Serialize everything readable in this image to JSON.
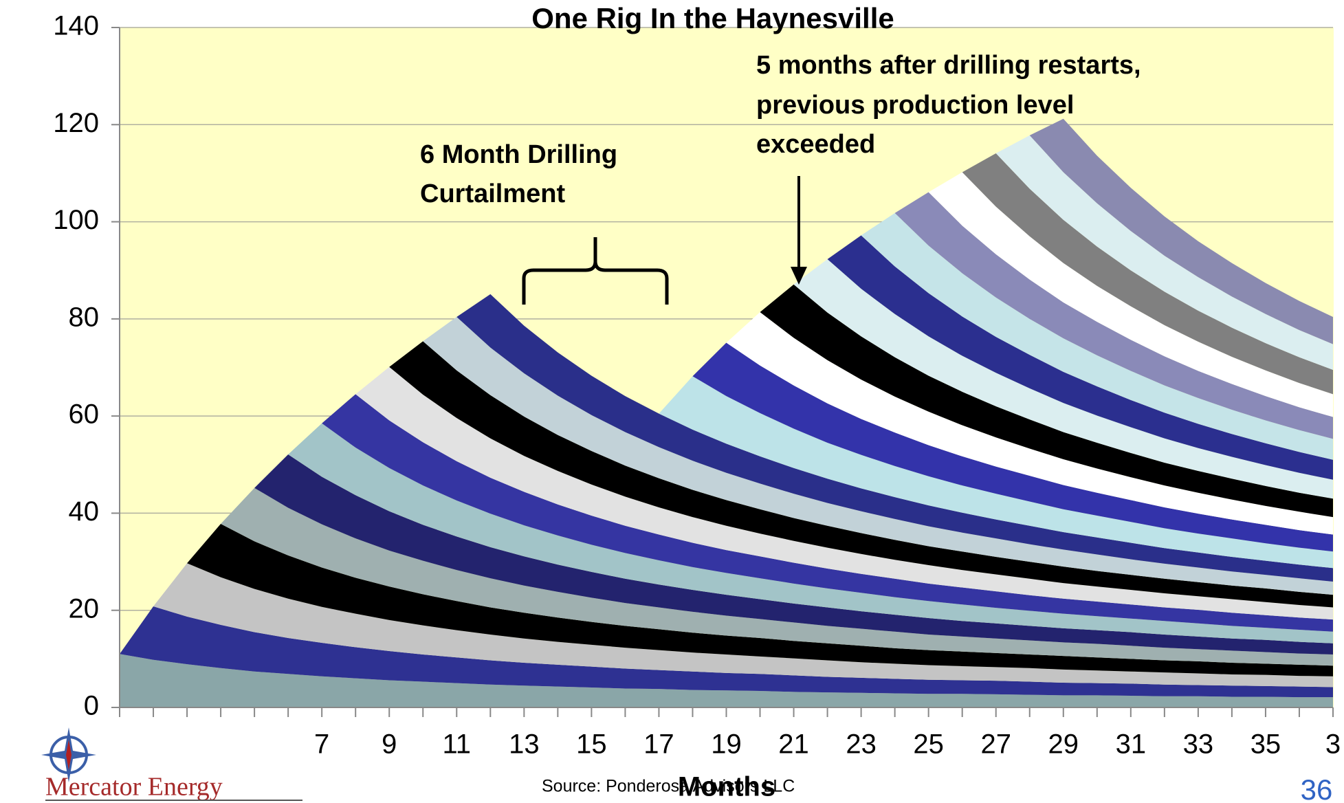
{
  "chart_data": {
    "type": "stacked_area",
    "title": "One Rig In the Haynesville",
    "x_label": "Months",
    "annotations": [
      [
        "6 Month Drilling",
        "Curtailment"
      ],
      [
        "5 months after drilling restarts,",
        "previous production level",
        "exceeded"
      ]
    ],
    "source": "Source: Ponderosa Advisors LLC",
    "brand": "Mercator Energy",
    "page": 36,
    "xlim": [
      1,
      37
    ],
    "ylim": [
      0,
      140
    ],
    "yticks": [
      0,
      20,
      40,
      60,
      80,
      100,
      120,
      140
    ],
    "xticks": [
      7,
      9,
      11,
      13,
      15,
      17,
      19,
      21,
      23,
      25,
      27,
      29,
      31,
      33,
      35,
      {
        "value": 37,
        "label": "3"
      }
    ],
    "grid": true,
    "background": "#ffffc6",
    "x": [
      1,
      2,
      3,
      4,
      5,
      6,
      7,
      8,
      9,
      10,
      11,
      12,
      13,
      14,
      15,
      16,
      17,
      18,
      19,
      20,
      21,
      22,
      23,
      24,
      25,
      26,
      27,
      28,
      29,
      30,
      31,
      32,
      33,
      34,
      35,
      36,
      37
    ],
    "series": [
      {
        "color": "#8aa6a8",
        "values": [
          11,
          9.8,
          8.9,
          8.1,
          7.4,
          6.9,
          6.4,
          6,
          5.6,
          5.3,
          5,
          4.7,
          4.5,
          4.3,
          4.1,
          3.9,
          3.8,
          3.6,
          3.5,
          3.4,
          3.2,
          3.1,
          3,
          2.9,
          2.8,
          2.8,
          2.7,
          2.6,
          2.5,
          2.5,
          2.4,
          2.3,
          2.3,
          2.2,
          2.2,
          2.1,
          2.1
        ]
      },
      {
        "color": "#2e3192",
        "values": [
          0,
          11,
          9.8,
          8.9,
          8.1,
          7.4,
          6.9,
          6.4,
          6,
          5.6,
          5.3,
          5,
          4.7,
          4.5,
          4.3,
          4.1,
          3.9,
          3.8,
          3.6,
          3.5,
          3.4,
          3.2,
          3.1,
          3,
          2.9,
          2.8,
          2.8,
          2.7,
          2.6,
          2.5,
          2.5,
          2.4,
          2.3,
          2.3,
          2.2,
          2.2,
          2.1
        ]
      },
      {
        "color": "#c4c4c4",
        "values": [
          0,
          0,
          11,
          9.8,
          8.9,
          8.1,
          7.4,
          6.9,
          6.4,
          6,
          5.6,
          5.3,
          5,
          4.7,
          4.5,
          4.3,
          4.1,
          3.9,
          3.8,
          3.6,
          3.5,
          3.4,
          3.2,
          3.1,
          3,
          2.9,
          2.8,
          2.8,
          2.7,
          2.6,
          2.5,
          2.5,
          2.4,
          2.3,
          2.3,
          2.2,
          2.2
        ]
      },
      {
        "color": "#000000",
        "values": [
          0,
          0,
          0,
          11,
          9.8,
          8.9,
          8.1,
          7.4,
          6.9,
          6.4,
          6,
          5.6,
          5.3,
          5,
          4.7,
          4.5,
          4.3,
          4.1,
          3.9,
          3.8,
          3.6,
          3.5,
          3.4,
          3.2,
          3.1,
          3,
          2.9,
          2.8,
          2.8,
          2.7,
          2.6,
          2.5,
          2.5,
          2.4,
          2.3,
          2.3,
          2.2
        ]
      },
      {
        "color": "#9fb0b0",
        "values": [
          0,
          0,
          0,
          0,
          11,
          9.8,
          8.9,
          8.1,
          7.4,
          6.9,
          6.4,
          6,
          5.6,
          5.3,
          5,
          4.7,
          4.5,
          4.3,
          4.1,
          3.9,
          3.8,
          3.6,
          3.5,
          3.4,
          3.2,
          3.1,
          3,
          2.9,
          2.8,
          2.8,
          2.7,
          2.6,
          2.5,
          2.5,
          2.4,
          2.3,
          2.3
        ]
      },
      {
        "color": "#23236e",
        "values": [
          0,
          0,
          0,
          0,
          0,
          11,
          9.8,
          8.9,
          8.1,
          7.4,
          6.9,
          6.4,
          6,
          5.6,
          5.3,
          5,
          4.7,
          4.5,
          4.3,
          4.1,
          3.9,
          3.8,
          3.6,
          3.5,
          3.4,
          3.2,
          3.1,
          3,
          2.9,
          2.8,
          2.8,
          2.7,
          2.6,
          2.5,
          2.5,
          2.4,
          2.3
        ]
      },
      {
        "color": "#a2c4c8",
        "values": [
          0,
          0,
          0,
          0,
          0,
          0,
          11,
          9.8,
          8.9,
          8.1,
          7.4,
          6.9,
          6.4,
          6,
          5.6,
          5.3,
          5,
          4.7,
          4.5,
          4.3,
          4.1,
          3.9,
          3.8,
          3.6,
          3.5,
          3.4,
          3.2,
          3.1,
          3,
          2.9,
          2.8,
          2.8,
          2.7,
          2.6,
          2.5,
          2.5,
          2.4
        ]
      },
      {
        "color": "#3535a2",
        "values": [
          0,
          0,
          0,
          0,
          0,
          0,
          0,
          11,
          9.8,
          8.9,
          8.1,
          7.4,
          6.9,
          6.4,
          6,
          5.6,
          5.3,
          5,
          4.7,
          4.5,
          4.3,
          4.1,
          3.9,
          3.8,
          3.6,
          3.5,
          3.4,
          3.2,
          3.1,
          3,
          2.9,
          2.8,
          2.8,
          2.7,
          2.6,
          2.5,
          2.5
        ]
      },
      {
        "color": "#e2e2e2",
        "values": [
          0,
          0,
          0,
          0,
          0,
          0,
          0,
          0,
          11,
          9.8,
          8.9,
          8.1,
          7.4,
          6.9,
          6.4,
          6,
          5.6,
          5.3,
          5,
          4.7,
          4.5,
          4.3,
          4.1,
          3.9,
          3.8,
          3.6,
          3.5,
          3.4,
          3.2,
          3.1,
          3,
          2.9,
          2.8,
          2.8,
          2.7,
          2.6,
          2.5
        ]
      },
      {
        "color": "#000000",
        "values": [
          0,
          0,
          0,
          0,
          0,
          0,
          0,
          0,
          0,
          11,
          9.8,
          8.9,
          8.1,
          7.4,
          6.9,
          6.4,
          6,
          5.6,
          5.3,
          5,
          4.7,
          4.5,
          4.3,
          4.1,
          3.9,
          3.8,
          3.6,
          3.5,
          3.4,
          3.2,
          3.1,
          3,
          2.9,
          2.8,
          2.8,
          2.7,
          2.6
        ]
      },
      {
        "color": "#c2d2d8",
        "values": [
          0,
          0,
          0,
          0,
          0,
          0,
          0,
          0,
          0,
          0,
          11,
          9.8,
          8.9,
          8.1,
          7.4,
          6.9,
          6.4,
          6,
          5.6,
          5.3,
          5,
          4.7,
          4.5,
          4.3,
          4.1,
          3.9,
          3.8,
          3.6,
          3.5,
          3.4,
          3.2,
          3.1,
          3,
          2.9,
          2.8,
          2.8,
          2.7
        ]
      },
      {
        "color": "#2a2f8a",
        "values": [
          0,
          0,
          0,
          0,
          0,
          0,
          0,
          0,
          0,
          0,
          0,
          11,
          9.8,
          8.9,
          8.1,
          7.4,
          6.9,
          6.4,
          6,
          5.6,
          5.3,
          5,
          4.7,
          4.5,
          4.3,
          4.1,
          3.9,
          3.8,
          3.6,
          3.5,
          3.4,
          3.2,
          3.1,
          3,
          2.9,
          2.8,
          2.8
        ]
      },
      {
        "color": "#bde3e8",
        "values": [
          0,
          0,
          0,
          0,
          0,
          0,
          0,
          0,
          0,
          0,
          0,
          0,
          0,
          0,
          0,
          0,
          0,
          11,
          9.8,
          8.9,
          8.1,
          7.4,
          6.9,
          6.4,
          6,
          5.6,
          5.3,
          5,
          4.7,
          4.5,
          4.3,
          4.1,
          3.9,
          3.8,
          3.6,
          3.5,
          3.4
        ]
      },
      {
        "color": "#3333aa",
        "values": [
          0,
          0,
          0,
          0,
          0,
          0,
          0,
          0,
          0,
          0,
          0,
          0,
          0,
          0,
          0,
          0,
          0,
          0,
          11,
          9.8,
          8.9,
          8.1,
          7.4,
          6.9,
          6.4,
          6,
          5.6,
          5.3,
          5,
          4.7,
          4.5,
          4.3,
          4.1,
          3.9,
          3.8,
          3.6,
          3.5
        ]
      },
      {
        "color": "#ffffff",
        "values": [
          0,
          0,
          0,
          0,
          0,
          0,
          0,
          0,
          0,
          0,
          0,
          0,
          0,
          0,
          0,
          0,
          0,
          0,
          0,
          11,
          9.8,
          8.9,
          8.1,
          7.4,
          6.9,
          6.4,
          6,
          5.6,
          5.3,
          5,
          4.7,
          4.5,
          4.3,
          4.1,
          3.9,
          3.8,
          3.6
        ]
      },
      {
        "color": "#000000",
        "values": [
          0,
          0,
          0,
          0,
          0,
          0,
          0,
          0,
          0,
          0,
          0,
          0,
          0,
          0,
          0,
          0,
          0,
          0,
          0,
          0,
          11,
          9.8,
          8.9,
          8.1,
          7.4,
          6.9,
          6.4,
          6,
          5.6,
          5.3,
          5,
          4.7,
          4.5,
          4.3,
          4.1,
          3.9,
          3.8
        ]
      },
      {
        "color": "#dbeef0",
        "values": [
          0,
          0,
          0,
          0,
          0,
          0,
          0,
          0,
          0,
          0,
          0,
          0,
          0,
          0,
          0,
          0,
          0,
          0,
          0,
          0,
          0,
          11,
          9.8,
          8.9,
          8.1,
          7.4,
          6.9,
          6.4,
          6,
          5.6,
          5.3,
          5,
          4.7,
          4.5,
          4.3,
          4.1,
          3.9
        ]
      },
      {
        "color": "#2b2f8f",
        "values": [
          0,
          0,
          0,
          0,
          0,
          0,
          0,
          0,
          0,
          0,
          0,
          0,
          0,
          0,
          0,
          0,
          0,
          0,
          0,
          0,
          0,
          0,
          11,
          9.8,
          8.9,
          8.1,
          7.4,
          6.9,
          6.4,
          6,
          5.6,
          5.3,
          5,
          4.7,
          4.5,
          4.3,
          4.1
        ]
      },
      {
        "color": "#c5e4e8",
        "values": [
          0,
          0,
          0,
          0,
          0,
          0,
          0,
          0,
          0,
          0,
          0,
          0,
          0,
          0,
          0,
          0,
          0,
          0,
          0,
          0,
          0,
          0,
          0,
          11,
          9.8,
          8.9,
          8.1,
          7.4,
          6.9,
          6.4,
          6,
          5.6,
          5.3,
          5,
          4.7,
          4.5,
          4.3
        ]
      },
      {
        "color": "#8a8ab8",
        "values": [
          0,
          0,
          0,
          0,
          0,
          0,
          0,
          0,
          0,
          0,
          0,
          0,
          0,
          0,
          0,
          0,
          0,
          0,
          0,
          0,
          0,
          0,
          0,
          0,
          11,
          9.8,
          8.9,
          8.1,
          7.4,
          6.9,
          6.4,
          6,
          5.6,
          5.3,
          5,
          4.7,
          4.5
        ]
      },
      {
        "color": "#ffffff",
        "values": [
          0,
          0,
          0,
          0,
          0,
          0,
          0,
          0,
          0,
          0,
          0,
          0,
          0,
          0,
          0,
          0,
          0,
          0,
          0,
          0,
          0,
          0,
          0,
          0,
          0,
          11,
          9.8,
          8.9,
          8.1,
          7.4,
          6.9,
          6.4,
          6,
          5.6,
          5.3,
          5,
          4.7
        ]
      },
      {
        "color": "#808080",
        "values": [
          0,
          0,
          0,
          0,
          0,
          0,
          0,
          0,
          0,
          0,
          0,
          0,
          0,
          0,
          0,
          0,
          0,
          0,
          0,
          0,
          0,
          0,
          0,
          0,
          0,
          0,
          11,
          9.8,
          8.9,
          8.1,
          7.4,
          6.9,
          6.4,
          6,
          5.6,
          5.3,
          5
        ]
      },
      {
        "color": "#dbeef0",
        "values": [
          0,
          0,
          0,
          0,
          0,
          0,
          0,
          0,
          0,
          0,
          0,
          0,
          0,
          0,
          0,
          0,
          0,
          0,
          0,
          0,
          0,
          0,
          0,
          0,
          0,
          0,
          0,
          11,
          9.8,
          8.9,
          8.1,
          7.4,
          6.9,
          6.4,
          6,
          5.6,
          5.3
        ]
      },
      {
        "color": "#8a8ab0",
        "values": [
          0,
          0,
          0,
          0,
          0,
          0,
          0,
          0,
          0,
          0,
          0,
          0,
          0,
          0,
          0,
          0,
          0,
          0,
          0,
          0,
          0,
          0,
          0,
          0,
          0,
          0,
          0,
          0,
          11,
          9.8,
          8.9,
          8.1,
          7.4,
          6.9,
          6.4,
          6,
          5.6
        ]
      }
    ]
  }
}
